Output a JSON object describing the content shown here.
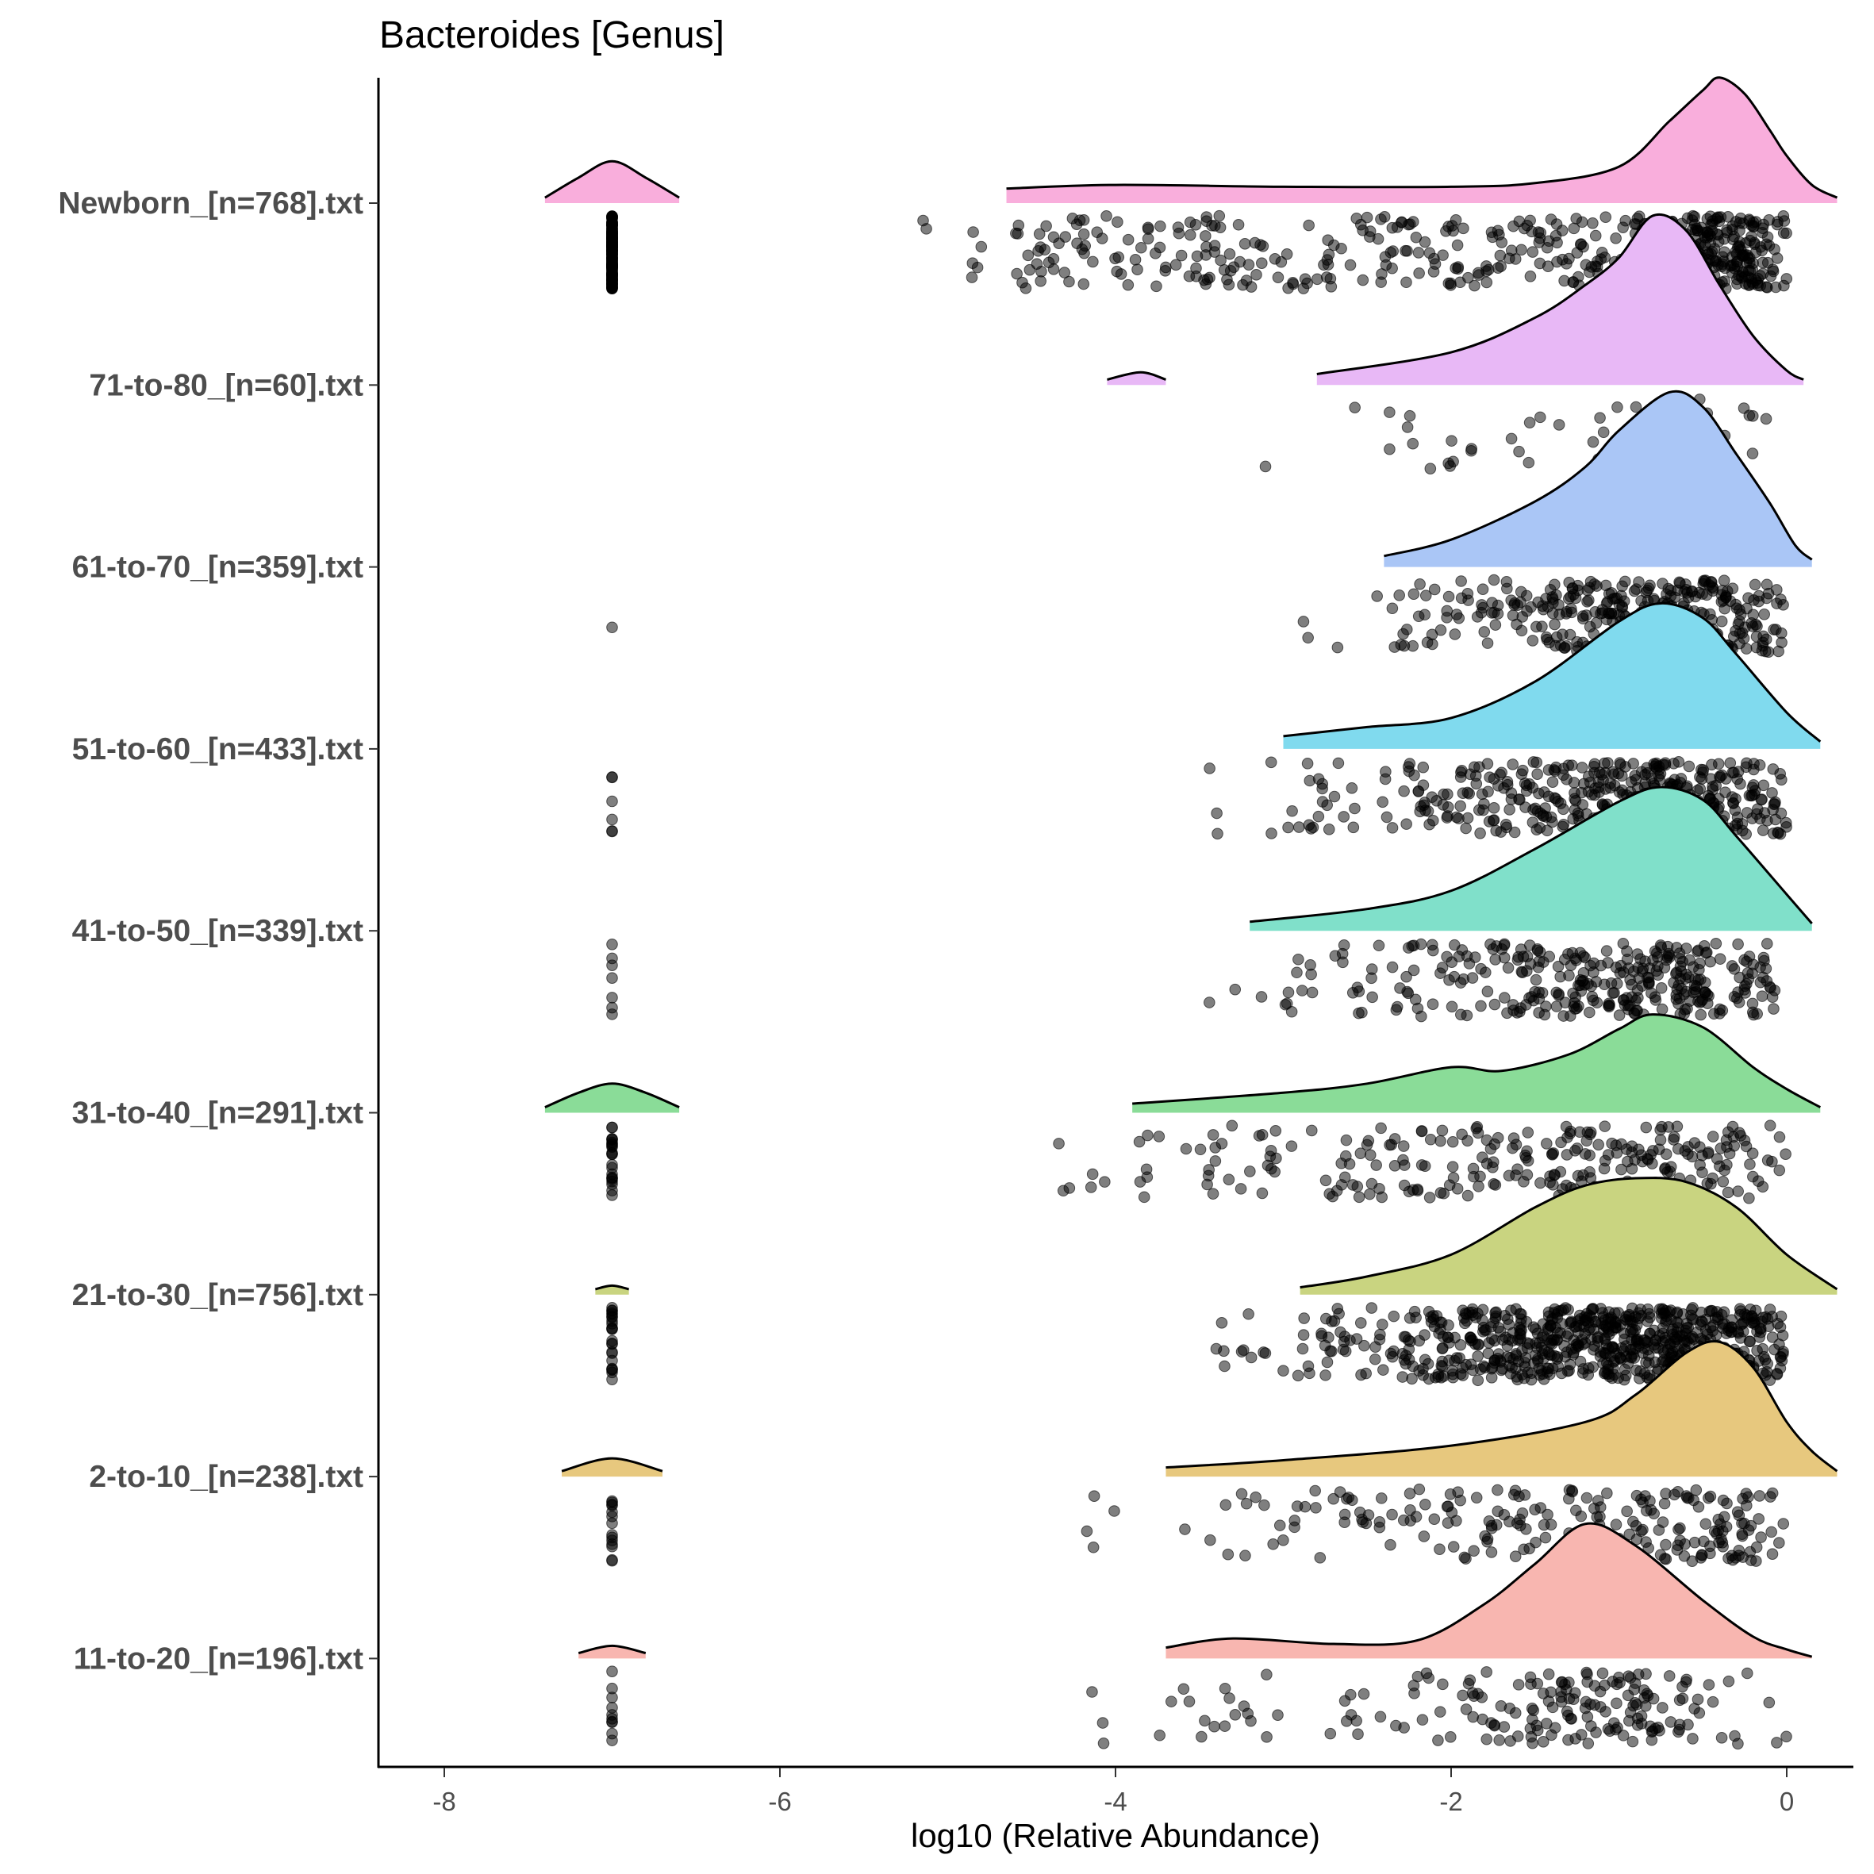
{
  "chart_data": {
    "type": "raincloud (density ridges + jittered points)",
    "title": "Bacteroides [Genus]",
    "xlabel": "log10 (Relative Abundance)",
    "ylabel": "",
    "xlim": [
      -8.4,
      0.4
    ],
    "x_ticks": [
      -8,
      -6,
      -4,
      -2,
      0
    ],
    "x_tick_labels": [
      "-8",
      "-6",
      "-4",
      "-2",
      "0"
    ],
    "grid": false,
    "legend": "none",
    "point_color": "#000000",
    "groups": [
      {
        "label": "Newborn_[n=768].txt",
        "n": 768,
        "color": "#F9AEDC",
        "density": [
          [
            -4.65,
            0.08
          ],
          [
            -4,
            0.1
          ],
          [
            -3,
            0.09
          ],
          [
            -2,
            0.09
          ],
          [
            -1.5,
            0.11
          ],
          [
            -1,
            0.2
          ],
          [
            -0.7,
            0.45
          ],
          [
            -0.5,
            0.62
          ],
          [
            -0.4,
            0.69
          ],
          [
            -0.25,
            0.6
          ],
          [
            -0.1,
            0.4
          ],
          [
            0,
            0.26
          ],
          [
            0.15,
            0.1
          ],
          [
            0.3,
            0.03
          ]
        ],
        "zero_density": [
          [
            -7.4,
            0.03
          ],
          [
            -7.2,
            0.14
          ],
          [
            -7,
            0.23
          ],
          [
            -6.8,
            0.14
          ],
          [
            -6.6,
            0.03
          ]
        ]
      },
      {
        "label": "71-to-80_[n=60].txt",
        "n": 60,
        "color": "#E8B8F6",
        "density": [
          [
            -2.8,
            0.06
          ],
          [
            -2,
            0.18
          ],
          [
            -1.5,
            0.37
          ],
          [
            -1.2,
            0.55
          ],
          [
            -1,
            0.7
          ],
          [
            -0.8,
            0.93
          ],
          [
            -0.6,
            0.85
          ],
          [
            -0.4,
            0.55
          ],
          [
            -0.2,
            0.27
          ],
          [
            0,
            0.08
          ],
          [
            0.1,
            0.03
          ]
        ],
        "zero_density": [
          [
            -4.05,
            0.03
          ],
          [
            -3.85,
            0.07
          ],
          [
            -3.7,
            0.03
          ]
        ]
      },
      {
        "label": "61-to-70_[n=359].txt",
        "n": 359,
        "color": "#AAC6F6",
        "density": [
          [
            -2.4,
            0.06
          ],
          [
            -2,
            0.15
          ],
          [
            -1.5,
            0.36
          ],
          [
            -1.2,
            0.55
          ],
          [
            -1,
            0.75
          ],
          [
            -0.7,
            0.96
          ],
          [
            -0.5,
            0.88
          ],
          [
            -0.3,
            0.62
          ],
          [
            -0.1,
            0.35
          ],
          [
            0.05,
            0.12
          ],
          [
            0.15,
            0.04
          ]
        ],
        "zero_density": []
      },
      {
        "label": "51-to-60_[n=433].txt",
        "n": 433,
        "color": "#80DAEE",
        "density": [
          [
            -3,
            0.07
          ],
          [
            -2.5,
            0.12
          ],
          [
            -2,
            0.17
          ],
          [
            -1.5,
            0.37
          ],
          [
            -1,
            0.7
          ],
          [
            -0.75,
            0.8
          ],
          [
            -0.5,
            0.72
          ],
          [
            -0.3,
            0.52
          ],
          [
            0,
            0.2
          ],
          [
            0.2,
            0.04
          ]
        ],
        "zero_density": []
      },
      {
        "label": "41-to-50_[n=339].txt",
        "n": 339,
        "color": "#80E0CA",
        "density": [
          [
            -3.2,
            0.05
          ],
          [
            -2.5,
            0.12
          ],
          [
            -2,
            0.22
          ],
          [
            -1.5,
            0.45
          ],
          [
            -1,
            0.71
          ],
          [
            -0.75,
            0.79
          ],
          [
            -0.5,
            0.72
          ],
          [
            -0.3,
            0.52
          ],
          [
            0,
            0.2
          ],
          [
            0.15,
            0.04
          ]
        ],
        "zero_density": []
      },
      {
        "label": "31-to-40_[n=291].txt",
        "n": 291,
        "color": "#8ADC98",
        "density": [
          [
            -3.9,
            0.05
          ],
          [
            -3,
            0.11
          ],
          [
            -2.5,
            0.16
          ],
          [
            -2,
            0.25
          ],
          [
            -1.7,
            0.23
          ],
          [
            -1.3,
            0.32
          ],
          [
            -1,
            0.46
          ],
          [
            -0.8,
            0.54
          ],
          [
            -0.5,
            0.47
          ],
          [
            -0.2,
            0.25
          ],
          [
            0,
            0.13
          ],
          [
            0.2,
            0.03
          ]
        ],
        "zero_density": [
          [
            -7.4,
            0.03
          ],
          [
            -7.2,
            0.11
          ],
          [
            -7,
            0.16
          ],
          [
            -6.8,
            0.11
          ],
          [
            -6.6,
            0.03
          ]
        ]
      },
      {
        "label": "21-to-30_[n=756].txt",
        "n": 756,
        "color": "#C9D480",
        "density": [
          [
            -2.9,
            0.04
          ],
          [
            -2.5,
            0.1
          ],
          [
            -2,
            0.22
          ],
          [
            -1.5,
            0.48
          ],
          [
            -1.2,
            0.6
          ],
          [
            -0.9,
            0.64
          ],
          [
            -0.6,
            0.62
          ],
          [
            -0.3,
            0.48
          ],
          [
            0,
            0.22
          ],
          [
            0.3,
            0.03
          ]
        ],
        "zero_density": [
          [
            -7.1,
            0.03
          ],
          [
            -7,
            0.05
          ],
          [
            -6.9,
            0.03
          ]
        ]
      },
      {
        "label": "2-to-10_[n=238].txt",
        "n": 238,
        "color": "#E7C87E",
        "density": [
          [
            -3.7,
            0.05
          ],
          [
            -3,
            0.09
          ],
          [
            -2,
            0.17
          ],
          [
            -1.2,
            0.3
          ],
          [
            -0.9,
            0.45
          ],
          [
            -0.6,
            0.68
          ],
          [
            -0.4,
            0.74
          ],
          [
            -0.2,
            0.6
          ],
          [
            0,
            0.3
          ],
          [
            0.15,
            0.14
          ],
          [
            0.3,
            0.03
          ]
        ],
        "zero_density": [
          [
            -7.3,
            0.03
          ],
          [
            -7,
            0.1
          ],
          [
            -6.7,
            0.03
          ]
        ]
      },
      {
        "label": "11-to-20_[n=196].txt",
        "n": 196,
        "color": "#F8B6B0",
        "density": [
          [
            -3.7,
            0.06
          ],
          [
            -3.3,
            0.11
          ],
          [
            -2.7,
            0.08
          ],
          [
            -2.2,
            0.1
          ],
          [
            -1.8,
            0.3
          ],
          [
            -1.5,
            0.52
          ],
          [
            -1.2,
            0.74
          ],
          [
            -0.9,
            0.62
          ],
          [
            -0.5,
            0.32
          ],
          [
            -0.2,
            0.12
          ],
          [
            0,
            0.05
          ],
          [
            0.15,
            0.01
          ]
        ],
        "zero_density": [
          [
            -7.2,
            0.03
          ],
          [
            -7,
            0.07
          ],
          [
            -6.8,
            0.03
          ]
        ]
      }
    ]
  }
}
